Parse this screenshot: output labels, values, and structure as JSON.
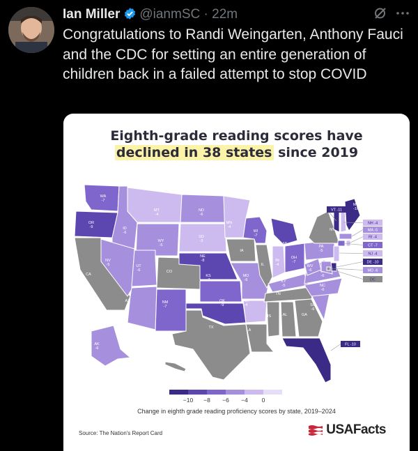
{
  "tweet": {
    "author_name": "Ian Miller",
    "handle": "@ianmSC",
    "time": "22m",
    "text": "Congratulations to Randi Weingarten, Anthony Fauci and the CDC for setting an entire generation of children back in a failed attempt to stop COVID"
  },
  "icons": {
    "verified": "verified-badge-icon",
    "grok": "grok-icon",
    "more": "more-options-icon"
  },
  "colors": {
    "verified": "#1d9bf0",
    "scale": [
      "#3b2a86",
      "#5c46b0",
      "#7f66cc",
      "#a690de",
      "#cdbbf0",
      "#e6ddf8"
    ],
    "no_change": "#8c8c8c",
    "highlight": "#fbf3a8"
  },
  "card": {
    "title_line1": "Eighth-grade reading scores have",
    "title_highlight": "declined in 38 states",
    "title_rest": " since 2019",
    "legend_ticks": [
      "−10",
      "−8",
      "−6",
      "−4",
      "0"
    ],
    "legend_title": "Change in eighth grade reading proficiency scores by state, 2019–2024",
    "source": "Source: The Nation's Report Card",
    "brand": "USAFacts"
  },
  "chart_data": {
    "type": "choropleth-map",
    "title": "Eighth-grade reading scores have declined in 38 states since 2019",
    "legend": "Change in eighth grade reading proficiency scores by state, 2019–2024",
    "legend_scale": [
      -10,
      -8,
      -6,
      -4,
      0
    ],
    "states": [
      {
        "state": "WA",
        "value": -7
      },
      {
        "state": "OR",
        "value": -9
      },
      {
        "state": "ID",
        "value": -6
      },
      {
        "state": "MT",
        "value": -4
      },
      {
        "state": "WY",
        "value": -5
      },
      {
        "state": "NV",
        "value": -5
      },
      {
        "state": "UT",
        "value": -6
      },
      {
        "state": "CA",
        "value": null
      },
      {
        "state": "AZ",
        "value": -5
      },
      {
        "state": "CO",
        "value": null
      },
      {
        "state": "NM",
        "value": -7
      },
      {
        "state": "ND",
        "value": -6
      },
      {
        "state": "SD",
        "value": -3
      },
      {
        "state": "NE",
        "value": -8
      },
      {
        "state": "KS",
        "value": -7
      },
      {
        "state": "OK",
        "value": -9
      },
      {
        "state": "TX",
        "value": null
      },
      {
        "state": "MN",
        "value": -4
      },
      {
        "state": "IA",
        "value": null
      },
      {
        "state": "MO",
        "value": -6
      },
      {
        "state": "AR",
        "value": -4
      },
      {
        "state": "LA",
        "value": null
      },
      {
        "state": "WI",
        "value": -7
      },
      {
        "state": "IL",
        "value": null
      },
      {
        "state": "MS",
        "value": null
      },
      {
        "state": "MI",
        "value": -8
      },
      {
        "state": "IN",
        "value": -4
      },
      {
        "state": "OH",
        "value": -7
      },
      {
        "state": "KY",
        "value": -5
      },
      {
        "state": "TN",
        "value": null
      },
      {
        "state": "AL",
        "value": null
      },
      {
        "state": "GA",
        "value": null
      },
      {
        "state": "FL",
        "value": -10
      },
      {
        "state": "SC",
        "value": -6
      },
      {
        "state": "NC",
        "value": -6
      },
      {
        "state": "VA",
        "value": -6
      },
      {
        "state": "WV",
        "value": -6
      },
      {
        "state": "PA",
        "value": -5
      },
      {
        "state": "NY",
        "value": null
      },
      {
        "state": "VT",
        "value": -11
      },
      {
        "state": "ME",
        "value": -10
      },
      {
        "state": "NH",
        "value": -4
      },
      {
        "state": "MA",
        "value": -5
      },
      {
        "state": "RI",
        "value": -4
      },
      {
        "state": "CT",
        "value": -7
      },
      {
        "state": "NJ",
        "value": -4
      },
      {
        "state": "DE",
        "value": -10
      },
      {
        "state": "MD",
        "value": -6
      },
      {
        "state": "DC",
        "value": null
      },
      {
        "state": "AK",
        "value": -6
      },
      {
        "state": "HI",
        "value": null
      }
    ]
  }
}
